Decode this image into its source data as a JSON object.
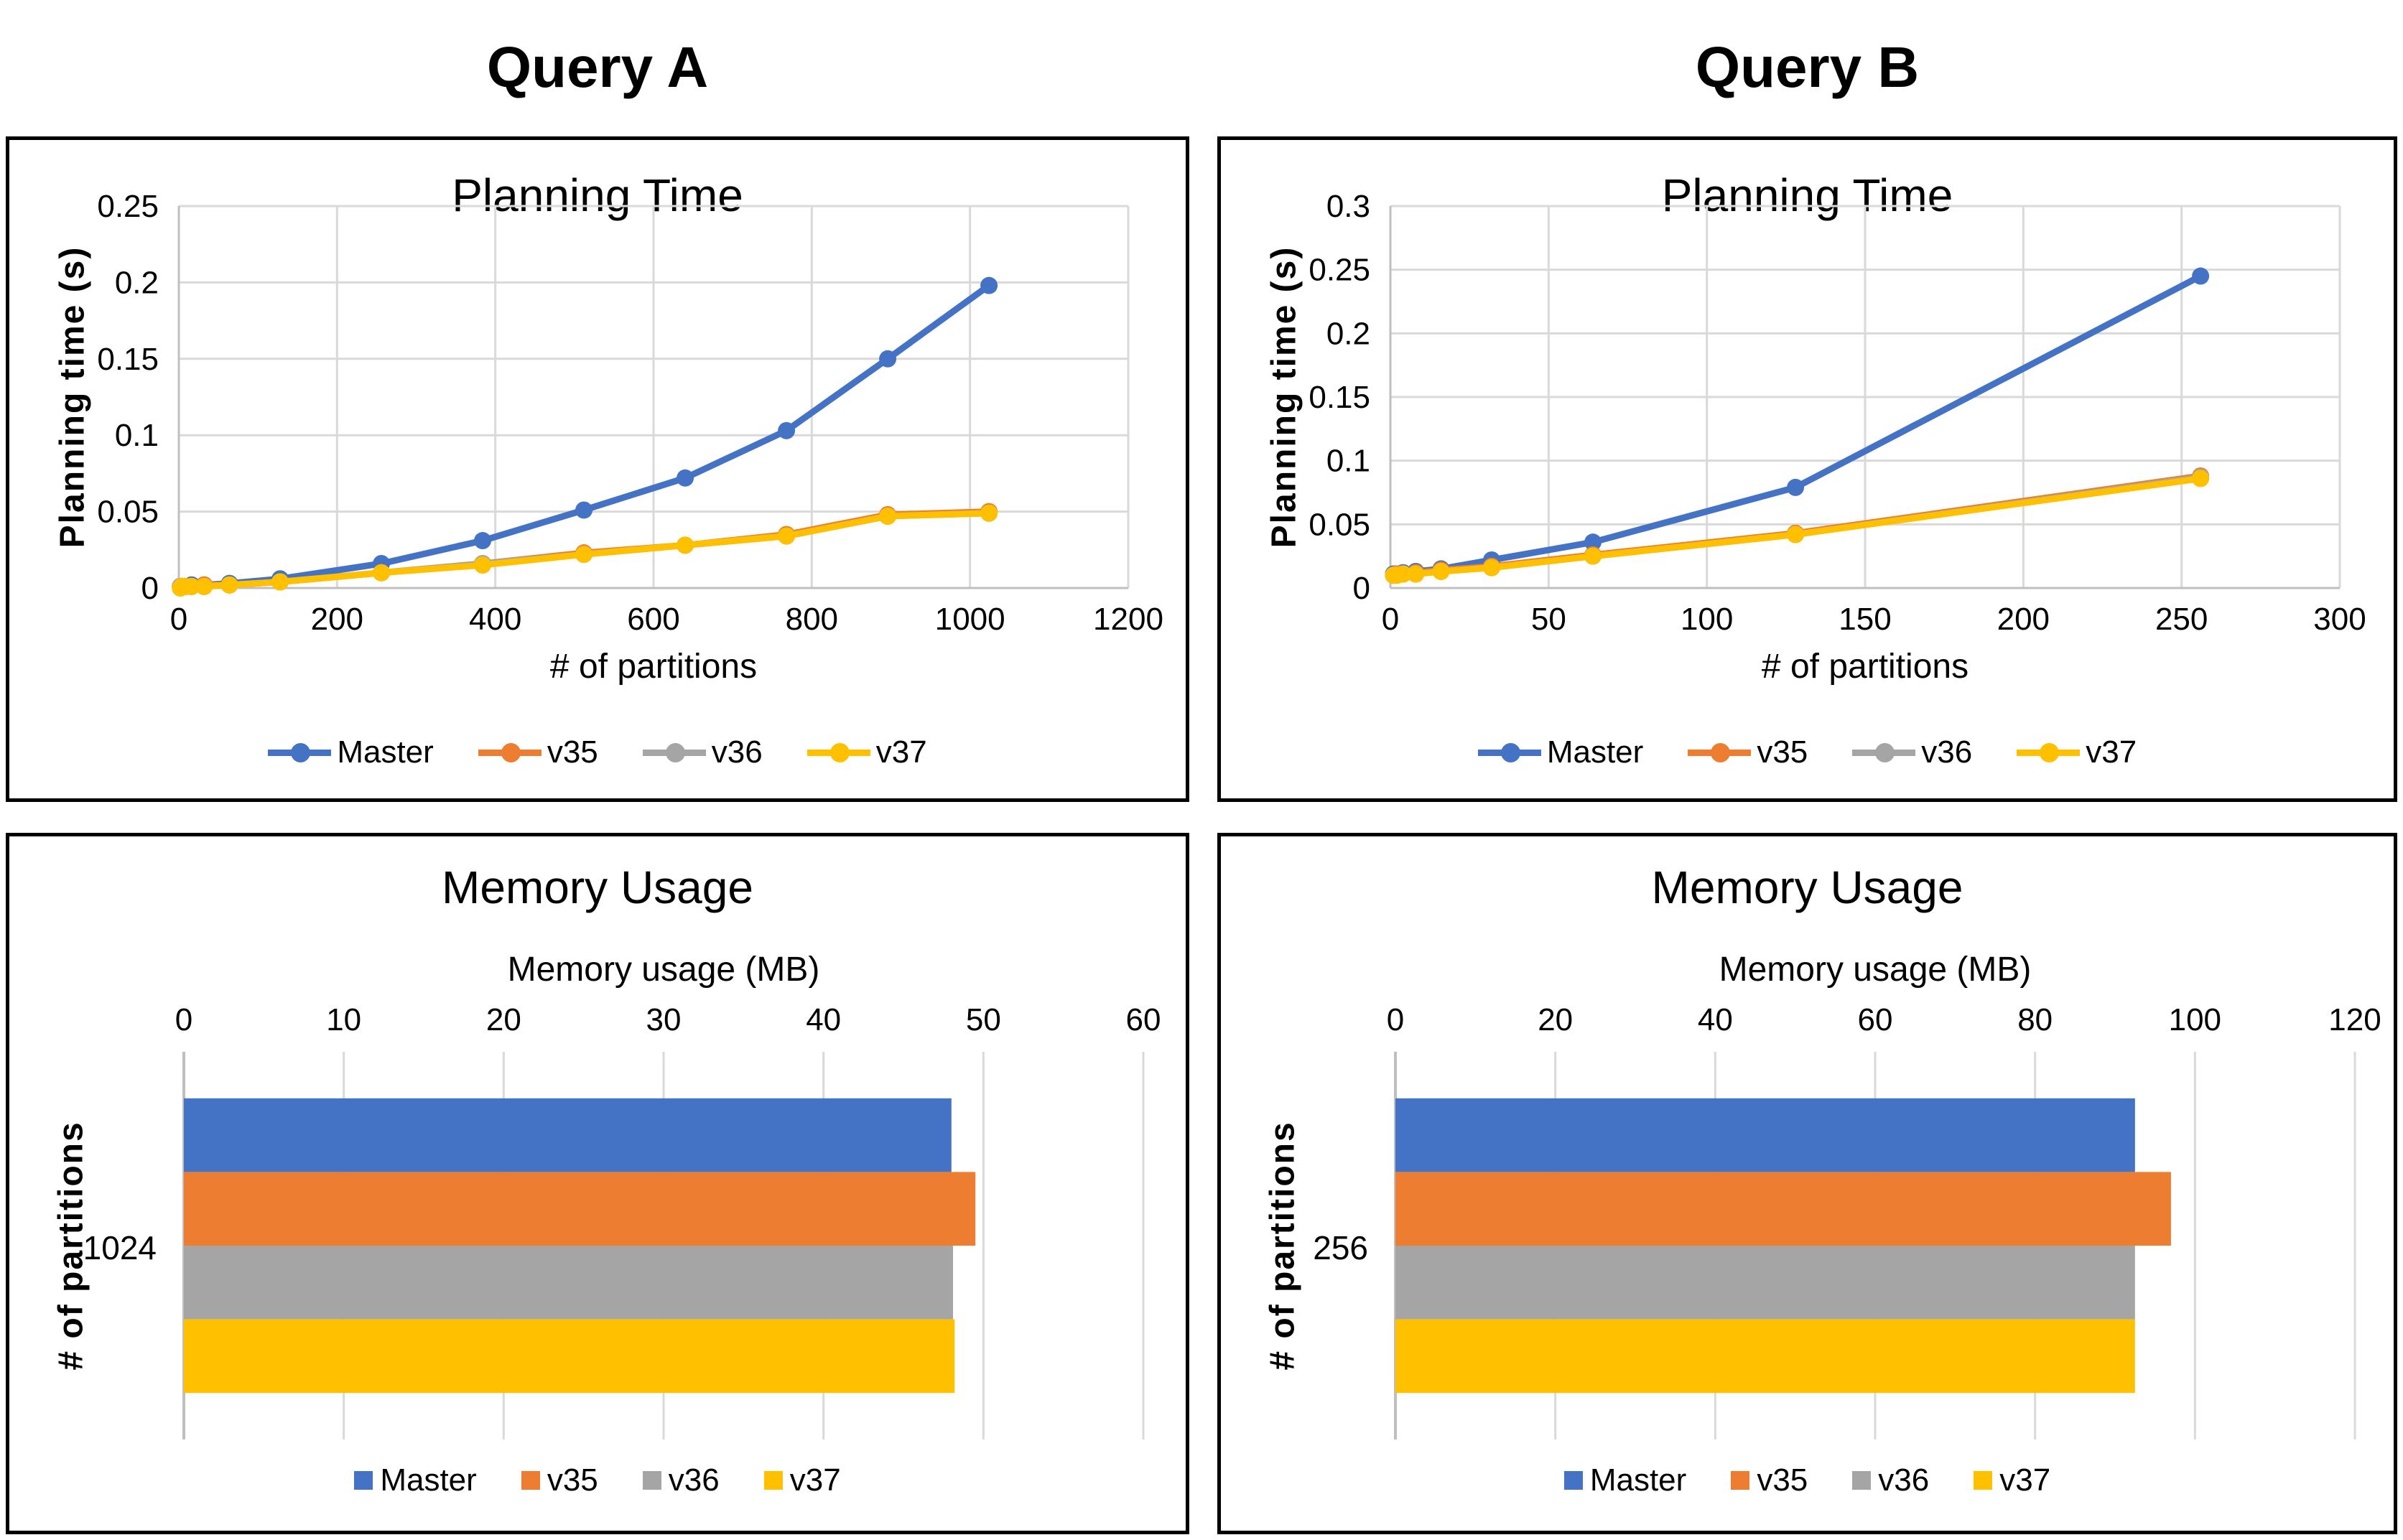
{
  "headers": {
    "query_a": "Query A",
    "query_b": "Query B"
  },
  "colors": {
    "master": "#4472C4",
    "v35": "#ED7D31",
    "v36": "#A5A5A5",
    "v37": "#FFC000",
    "gridline": "#D9D9D9",
    "axis_line": "#BFBFBF",
    "text": "#000000",
    "box_border": "#000000"
  },
  "chart_data": [
    {
      "id": "query-a-planning",
      "panel": "Query A",
      "type": "line",
      "title": "Planning Time",
      "xlabel": "# of partitions",
      "ylabel": "Planning time (s)",
      "xlim": [
        0,
        1200
      ],
      "ylim": [
        0,
        0.25
      ],
      "x_ticks": [
        0,
        200,
        400,
        600,
        800,
        1000,
        1200
      ],
      "y_ticks": [
        0,
        0.05,
        0.1,
        0.15,
        0.2,
        0.25
      ],
      "grid": true,
      "legend_position": "bottom",
      "x": [
        2,
        4,
        8,
        16,
        32,
        64,
        128,
        256,
        384,
        512,
        640,
        768,
        896,
        1024
      ],
      "series": [
        {
          "name": "Master",
          "color": "#4472C4",
          "values": [
            0.001,
            0.001,
            0.001,
            0.002,
            0.002,
            0.003,
            0.006,
            0.016,
            0.031,
            0.051,
            0.072,
            0.103,
            0.15,
            0.198
          ]
        },
        {
          "name": "v35",
          "color": "#ED7D31",
          "values": [
            0.001,
            0.001,
            0.001,
            0.001,
            0.002,
            0.002,
            0.004,
            0.01,
            0.016,
            0.023,
            0.028,
            0.035,
            0.048,
            0.05
          ]
        },
        {
          "name": "v36",
          "color": "#A5A5A5",
          "values": [
            0.001,
            0.001,
            0.001,
            0.001,
            0.001,
            0.002,
            0.004,
            0.01,
            0.016,
            0.022,
            0.028,
            0.034,
            0.047,
            0.049
          ]
        },
        {
          "name": "v37",
          "color": "#FFC000",
          "values": [
            0.0,
            0.001,
            0.001,
            0.001,
            0.001,
            0.002,
            0.004,
            0.01,
            0.015,
            0.022,
            0.028,
            0.034,
            0.047,
            0.049
          ]
        }
      ]
    },
    {
      "id": "query-b-planning",
      "panel": "Query B",
      "type": "line",
      "title": "Planning Time",
      "xlabel": "# of partitions",
      "ylabel": "Planning time (s)",
      "xlim": [
        0,
        300
      ],
      "ylim": [
        0,
        0.3
      ],
      "x_ticks": [
        0,
        50,
        100,
        150,
        200,
        250,
        300
      ],
      "y_ticks": [
        0,
        0.05,
        0.1,
        0.15,
        0.2,
        0.25,
        0.3
      ],
      "grid": true,
      "legend_position": "bottom",
      "x": [
        1,
        2,
        4,
        8,
        16,
        32,
        64,
        128,
        256
      ],
      "series": [
        {
          "name": "Master",
          "color": "#4472C4",
          "values": [
            0.011,
            0.011,
            0.012,
            0.013,
            0.015,
            0.022,
            0.036,
            0.079,
            0.245
          ]
        },
        {
          "name": "v35",
          "color": "#ED7D31",
          "values": [
            0.01,
            0.011,
            0.011,
            0.012,
            0.014,
            0.017,
            0.026,
            0.043,
            0.088
          ]
        },
        {
          "name": "v36",
          "color": "#A5A5A5",
          "values": [
            0.01,
            0.01,
            0.011,
            0.011,
            0.013,
            0.016,
            0.025,
            0.042,
            0.087
          ]
        },
        {
          "name": "v37",
          "color": "#FFC000",
          "values": [
            0.01,
            0.01,
            0.011,
            0.011,
            0.013,
            0.016,
            0.025,
            0.042,
            0.086
          ]
        }
      ]
    },
    {
      "id": "query-a-memory",
      "panel": "Query A",
      "type": "bar",
      "orientation": "horizontal",
      "title": "Memory Usage",
      "xlabel": "Memory usage (MB)",
      "ylabel": "# of partitions",
      "category": "1024",
      "xlim": [
        0,
        60
      ],
      "x_ticks": [
        0,
        10,
        20,
        30,
        40,
        50,
        60
      ],
      "grid": true,
      "legend_position": "bottom",
      "series": [
        {
          "name": "Master",
          "color": "#4472C4",
          "value": 48
        },
        {
          "name": "v35",
          "color": "#ED7D31",
          "value": 49.5
        },
        {
          "name": "v36",
          "color": "#A5A5A5",
          "value": 48.1
        },
        {
          "name": "v37",
          "color": "#FFC000",
          "value": 48.2
        }
      ]
    },
    {
      "id": "query-b-memory",
      "panel": "Query B",
      "type": "bar",
      "orientation": "horizontal",
      "title": "Memory Usage",
      "xlabel": "Memory usage (MB)",
      "ylabel": "# of partitions",
      "category": "256",
      "xlim": [
        0,
        120
      ],
      "x_ticks": [
        0,
        20,
        40,
        60,
        80,
        100,
        120
      ],
      "grid": true,
      "legend_position": "bottom",
      "series": [
        {
          "name": "Master",
          "color": "#4472C4",
          "value": 92.5
        },
        {
          "name": "v35",
          "color": "#ED7D31",
          "value": 97
        },
        {
          "name": "v36",
          "color": "#A5A5A5",
          "value": 92.5
        },
        {
          "name": "v37",
          "color": "#FFC000",
          "value": 92.5
        }
      ]
    }
  ]
}
